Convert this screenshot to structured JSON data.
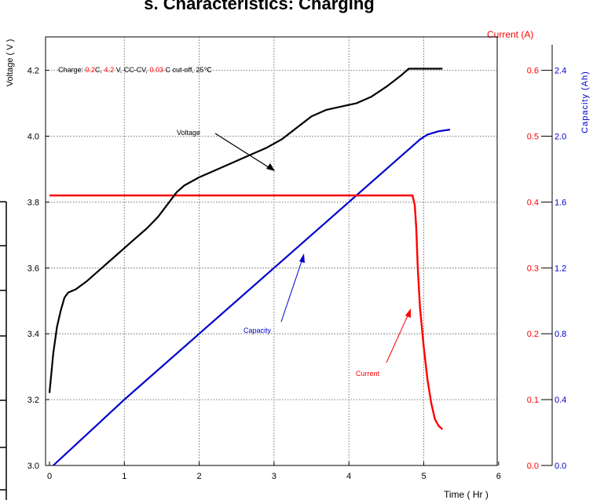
{
  "chart_data": {
    "type": "line",
    "title": "s. Characteristics: Charging",
    "xlabel": "Time ( Hr )",
    "ylabel_left": "Voltage ( V )",
    "ylabel_right_current": "Current (A)",
    "ylabel_right_capacity": "Capacity (Ah)",
    "xlim": [
      0,
      6
    ],
    "ylim_voltage": [
      3.0,
      4.3
    ],
    "ylim_current": [
      0.0,
      0.65
    ],
    "ylim_capacity": [
      0.0,
      2.6
    ],
    "x_ticks": [
      "0",
      "1",
      "2",
      "3",
      "4",
      "5",
      "6"
    ],
    "voltage_ticks": [
      "3.0",
      "3.2",
      "3.4",
      "3.6",
      "3.8",
      "4.0",
      "4.2"
    ],
    "current_ticks": [
      "0.0",
      "0.1",
      "0.2",
      "0.3",
      "0.4",
      "0.5",
      "0.6"
    ],
    "capacity_ticks": [
      "0.0",
      "0.4",
      "0.8",
      "1.2",
      "1.6",
      "2.0",
      "2.4"
    ],
    "grid": true,
    "condition": {
      "p1": "Charge: ",
      "rate": "0.2",
      "p2": "C, ",
      "volt": "4.2",
      "p3": " V, CC-CV, ",
      "cutoff": "0.03",
      "p4": " C cut-off, 25℃"
    },
    "annotations": {
      "voltage": "Voltage",
      "capacity": "Capacity",
      "current": "Current"
    },
    "series": [
      {
        "name": "Voltage",
        "axis": "voltage",
        "color": "#000000",
        "points": [
          [
            0.0,
            3.22
          ],
          [
            0.05,
            3.34
          ],
          [
            0.1,
            3.42
          ],
          [
            0.15,
            3.47
          ],
          [
            0.2,
            3.51
          ],
          [
            0.25,
            3.525
          ],
          [
            0.35,
            3.535
          ],
          [
            0.5,
            3.56
          ],
          [
            0.7,
            3.6
          ],
          [
            0.9,
            3.64
          ],
          [
            1.1,
            3.68
          ],
          [
            1.3,
            3.72
          ],
          [
            1.45,
            3.755
          ],
          [
            1.6,
            3.8
          ],
          [
            1.7,
            3.83
          ],
          [
            1.8,
            3.85
          ],
          [
            2.0,
            3.875
          ],
          [
            2.3,
            3.905
          ],
          [
            2.6,
            3.935
          ],
          [
            2.9,
            3.965
          ],
          [
            3.1,
            3.99
          ],
          [
            3.3,
            4.025
          ],
          [
            3.5,
            4.06
          ],
          [
            3.7,
            4.08
          ],
          [
            3.9,
            4.09
          ],
          [
            4.1,
            4.1
          ],
          [
            4.3,
            4.12
          ],
          [
            4.5,
            4.15
          ],
          [
            4.7,
            4.185
          ],
          [
            4.8,
            4.205
          ],
          [
            5.0,
            4.205
          ],
          [
            5.25,
            4.205
          ]
        ]
      },
      {
        "name": "Current",
        "axis": "current",
        "color": "#ff0000",
        "points": [
          [
            0.0,
            0.41
          ],
          [
            0.5,
            0.41
          ],
          [
            1.0,
            0.41
          ],
          [
            2.0,
            0.41
          ],
          [
            3.0,
            0.41
          ],
          [
            4.0,
            0.41
          ],
          [
            4.85,
            0.41
          ],
          [
            4.88,
            0.395
          ],
          [
            4.9,
            0.36
          ],
          [
            4.92,
            0.3
          ],
          [
            4.95,
            0.24
          ],
          [
            5.0,
            0.18
          ],
          [
            5.05,
            0.13
          ],
          [
            5.1,
            0.095
          ],
          [
            5.15,
            0.07
          ],
          [
            5.2,
            0.06
          ],
          [
            5.25,
            0.055
          ]
        ]
      },
      {
        "name": "Capacity",
        "axis": "capacity",
        "color": "#0000cc",
        "points": [
          [
            0.05,
            0.0
          ],
          [
            1.0,
            0.4
          ],
          [
            2.0,
            0.8
          ],
          [
            3.0,
            1.2
          ],
          [
            4.0,
            1.6
          ],
          [
            4.8,
            1.92
          ],
          [
            4.95,
            1.98
          ],
          [
            5.05,
            2.01
          ],
          [
            5.2,
            2.03
          ],
          [
            5.35,
            2.04
          ]
        ]
      }
    ]
  }
}
